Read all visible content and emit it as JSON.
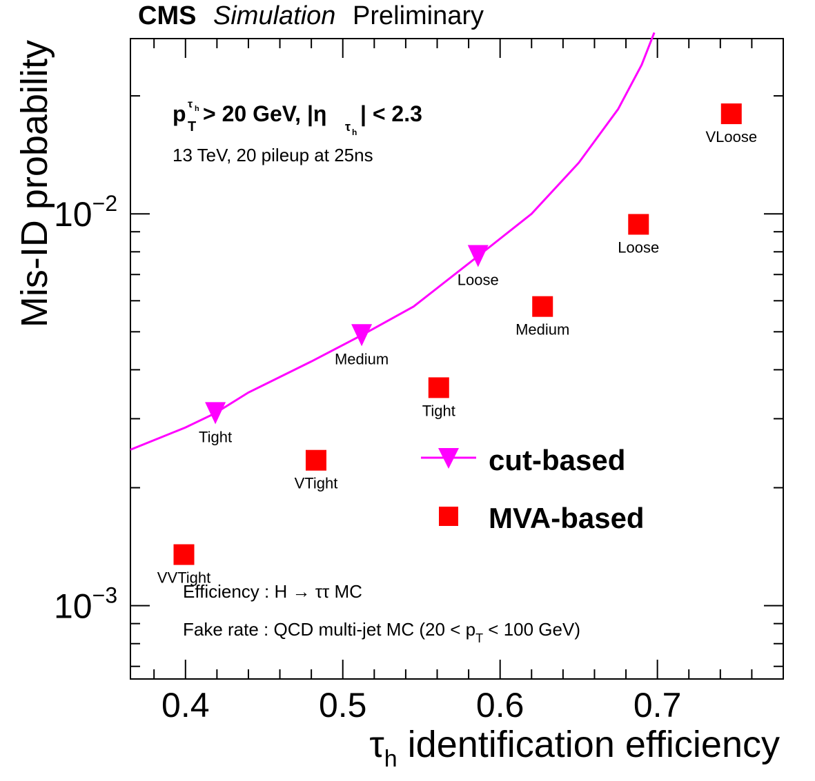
{
  "header": {
    "cms": "CMS",
    "simulation": "Simulation",
    "preliminary": "Preliminary"
  },
  "annotations": {
    "cut_p": "p",
    "cut_sup": "τ",
    "cut_sup_sub": "h",
    "cut_sub": "T",
    "cut_mid": " > 20 GeV, |η",
    "cut_eta_sub": "τ",
    "cut_eta_sub_sub": "h",
    "cut_end": "| < 2.3",
    "conditions": "13 TeV, 20 pileup at 25ns",
    "efficiency_prefix": "Efficiency : H ",
    "efficiency_arrow": "→",
    "efficiency_suffix": " ττ MC",
    "fakerate_prefix": "Fake rate : QCD multi-jet MC (20 < p",
    "fakerate_sub": "T",
    "fakerate_suffix": " < 100 GeV)"
  },
  "axes": {
    "x_title_tau": "τ",
    "x_title_sub": "h",
    "x_title_rest": " identification efficiency",
    "y_title": "Mis-ID probability",
    "x_ticks": [
      "0.4",
      "0.5",
      "0.6",
      "0.7"
    ],
    "y_tick_base": "10",
    "y_tick_exp": [
      "−3",
      "−2"
    ]
  },
  "legend": {
    "cut_based": "cut-based",
    "mva_based": "MVA-based"
  },
  "chart_data": {
    "type": "scatter",
    "xlim": [
      0.365,
      0.78
    ],
    "ylim": [
      0.00065,
      0.028
    ],
    "yscale": "log",
    "xlabel": "τh identification efficiency",
    "ylabel": "Mis-ID probability",
    "grid": false,
    "legend_position": "lower-right",
    "colors": {
      "cut_based": "#ff00ff",
      "mva_based": "#ff0000"
    },
    "series": [
      {
        "name": "cut-based",
        "marker": "triangle-down",
        "line": true,
        "curve": [
          [
            0.365,
            0.0025
          ],
          [
            0.4,
            0.00285
          ],
          [
            0.419,
            0.0031
          ],
          [
            0.44,
            0.0035
          ],
          [
            0.48,
            0.0042
          ],
          [
            0.512,
            0.0049
          ],
          [
            0.545,
            0.0058
          ],
          [
            0.586,
            0.0078
          ],
          [
            0.62,
            0.01
          ],
          [
            0.65,
            0.0135
          ],
          [
            0.675,
            0.0185
          ],
          [
            0.69,
            0.024
          ],
          [
            0.698,
            0.029
          ]
        ],
        "points": [
          {
            "label": "Tight",
            "x": 0.419,
            "y": 0.0031
          },
          {
            "label": "Medium",
            "x": 0.512,
            "y": 0.0049
          },
          {
            "label": "Loose",
            "x": 0.586,
            "y": 0.0078
          }
        ]
      },
      {
        "name": "MVA-based",
        "marker": "square",
        "line": false,
        "points": [
          {
            "label": "VVTight",
            "x": 0.399,
            "y": 0.00135
          },
          {
            "label": "VTight",
            "x": 0.483,
            "y": 0.00235
          },
          {
            "label": "Tight",
            "x": 0.561,
            "y": 0.0036
          },
          {
            "label": "Medium",
            "x": 0.627,
            "y": 0.0058
          },
          {
            "label": "Loose",
            "x": 0.688,
            "y": 0.0094
          },
          {
            "label": "VLoose",
            "x": 0.747,
            "y": 0.018
          }
        ]
      }
    ]
  }
}
